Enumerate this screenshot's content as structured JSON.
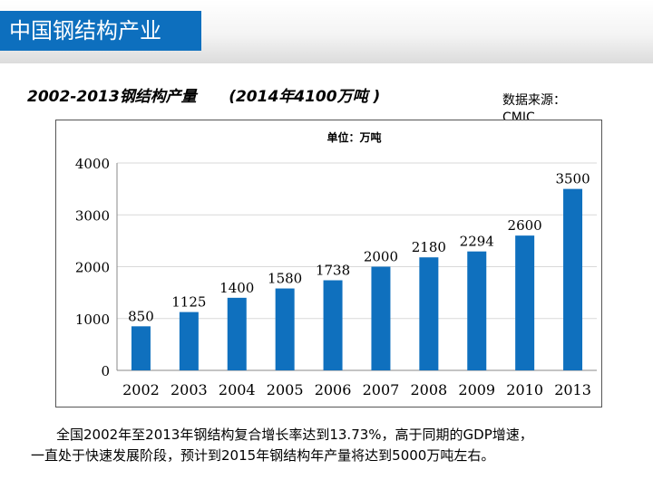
{
  "slide": {
    "title": "中国钢结构产业",
    "subtitle": "2002-2013钢结构产量      (2014年4100万吨 )",
    "source_label": "数据来源：",
    "source_value": "CMIC",
    "footer_line1": "全国2002年至2013年钢结构复合增长率达到13.73%，高于同期的GDP增速，",
    "footer_line2": "一直处于快速发展阶段，预计到2015年钢结构年产量将达到5000万吨左右。",
    "accent_color": "#0d6fbe",
    "bar_color": "#0f70be"
  },
  "chart_data": {
    "type": "bar",
    "title": "单位：万吨",
    "categories": [
      "2002",
      "2003",
      "2004",
      "2005",
      "2006",
      "2007",
      "2008",
      "2009",
      "2010",
      "2013"
    ],
    "values": [
      850,
      1125,
      1400,
      1580,
      1738,
      2000,
      2180,
      2294,
      2600,
      3500
    ],
    "data_labels": [
      "850",
      "1125",
      "1400",
      "1580",
      "1738",
      "2000",
      "2180",
      "2294",
      "2600",
      "3500"
    ],
    "ylim": [
      0,
      4000
    ],
    "yticks": [
      0,
      1000,
      2000,
      3000,
      4000
    ],
    "ytick_labels": [
      "0",
      "1000",
      "2000",
      "3000",
      "4000"
    ],
    "xlabel": "",
    "ylabel": "",
    "grid": true,
    "legend": "none"
  }
}
